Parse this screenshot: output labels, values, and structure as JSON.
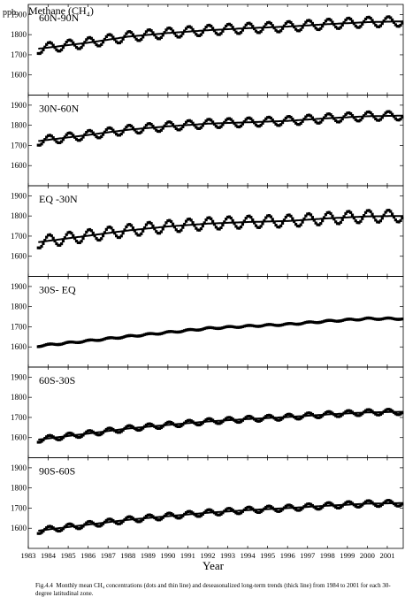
{
  "chart_data": {
    "type": "line",
    "title": "Methane (CH₄)",
    "ylabel": "ppb",
    "xlabel": "Year",
    "x_ticks": [
      "1983",
      "1984",
      "1985",
      "1986",
      "1987",
      "1988",
      "1989",
      "1990",
      "1991",
      "1992",
      "1993",
      "1994",
      "1995",
      "1996",
      "1997",
      "1998",
      "1999",
      "2000",
      "2001"
    ],
    "xlim": [
      1983,
      2001.8
    ],
    "ylim": [
      1500,
      1950
    ],
    "y_ticks": [
      1600,
      1700,
      1800,
      1900
    ],
    "series_legend": {
      "dots": "Monthly mean CH4 concentrations",
      "thin_line": "Monthly mean CH4 concentrations",
      "thick_line": "Deseasonalized long-term trend"
    },
    "panels": [
      {
        "label": "60N-90N",
        "monthly_data_start": 1983.5,
        "trend": {
          "x": [
            1983.5,
            1986,
            1988,
            1990,
            1992,
            1994,
            1996,
            1998,
            2000,
            2001.8
          ],
          "y": [
            1730,
            1760,
            1790,
            1808,
            1822,
            1832,
            1840,
            1852,
            1862,
            1866
          ]
        },
        "seasonal_amplitude": 25
      },
      {
        "label": "30N-60N",
        "monthly_data_start": 1983.5,
        "trend": {
          "x": [
            1983.5,
            1986,
            1988,
            1990,
            1992,
            1994,
            1996,
            1998,
            2000,
            2001.8
          ],
          "y": [
            1722,
            1752,
            1778,
            1795,
            1808,
            1815,
            1822,
            1835,
            1845,
            1848
          ]
        },
        "seasonal_amplitude": 22
      },
      {
        "label": "EQ -30N",
        "monthly_data_start": 1983.5,
        "trend": {
          "x": [
            1983.5,
            1986,
            1988,
            1990,
            1992,
            1994,
            1996,
            1998,
            2000,
            2001.8
          ],
          "y": [
            1670,
            1702,
            1728,
            1748,
            1762,
            1770,
            1775,
            1788,
            1798,
            1800
          ]
        },
        "seasonal_amplitude": 30
      },
      {
        "label": "30S- EQ",
        "monthly_data_start": 1983.5,
        "trend": {
          "x": [
            1983.5,
            1986,
            1988,
            1990,
            1992,
            1994,
            1996,
            1998,
            2000,
            2001.8
          ],
          "y": [
            1605,
            1630,
            1652,
            1672,
            1692,
            1703,
            1712,
            1728,
            1740,
            1740
          ]
        },
        "seasonal_amplitude": 4
      },
      {
        "label": "60S-30S",
        "monthly_data_start": 1983.5,
        "trend": {
          "x": [
            1983.5,
            1986,
            1988,
            1990,
            1992,
            1994,
            1996,
            1998,
            2000,
            2001.8
          ],
          "y": [
            1590,
            1620,
            1645,
            1663,
            1680,
            1692,
            1702,
            1715,
            1725,
            1728
          ]
        },
        "seasonal_amplitude": 14
      },
      {
        "label": "90S-60S",
        "monthly_data_start": 1983.5,
        "trend": {
          "x": [
            1983.5,
            1986,
            1988,
            1990,
            1992,
            1994,
            1996,
            1998,
            2000,
            2001.8
          ],
          "y": [
            1588,
            1618,
            1642,
            1660,
            1677,
            1690,
            1700,
            1712,
            1722,
            1725
          ]
        },
        "seasonal_amplitude": 15
      }
    ]
  },
  "caption": {
    "fig_prefix": "Fig.4.4",
    "text": "Monthly mean CH₄ concentrations (dots and thin line) and deseasonalized long-term trends (thick line) from 1984 to 2001 for each 30-degree latitudinal zone."
  }
}
